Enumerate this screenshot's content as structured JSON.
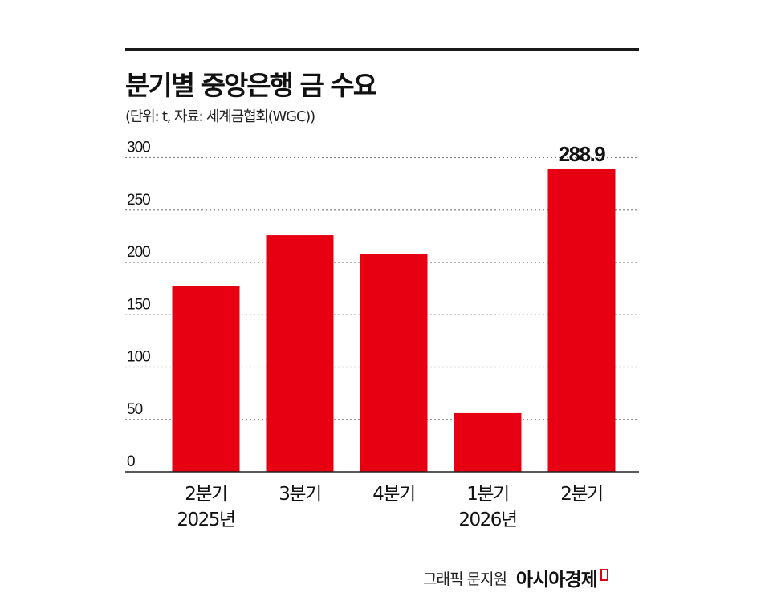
{
  "title": "분기별 중앙은행 금 수요",
  "subtitle": "(단위: t, 자료: 세계금협회(WGC))",
  "credit": {
    "text": "그래픽 문지원",
    "brand": "아시아경제"
  },
  "colors": {
    "bar": "#e60012",
    "gridline": "#888888",
    "axis": "#222222",
    "text": "#111111"
  },
  "chart_data": {
    "type": "bar",
    "categories": [
      [
        "2분기",
        "2025년"
      ],
      [
        "3분기",
        ""
      ],
      [
        "4분기",
        ""
      ],
      [
        "1분기",
        "2026년"
      ],
      [
        "2분기",
        ""
      ]
    ],
    "values": [
      177,
      226,
      208,
      56,
      288.9
    ],
    "data_labels": [
      "",
      "",
      "",
      "",
      "288.9"
    ],
    "yticks": [
      0,
      50,
      100,
      150,
      200,
      250,
      300
    ],
    "ylim": [
      0,
      300
    ],
    "grid": true,
    "grid_style": "dotted",
    "legend": "none"
  }
}
